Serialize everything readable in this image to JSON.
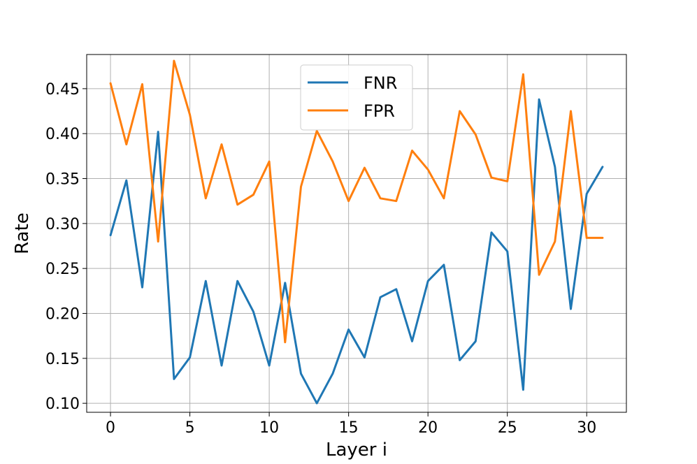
{
  "chart_data": {
    "type": "line",
    "title": "",
    "xlabel": "Layer i",
    "ylabel": "Rate",
    "xlim": [
      -1.5,
      32.5
    ],
    "ylim": [
      0.09,
      0.488
    ],
    "xticks": [
      0,
      5,
      10,
      15,
      20,
      25,
      30
    ],
    "yticks": [
      0.1,
      0.15,
      0.2,
      0.25,
      0.3,
      0.35,
      0.4,
      0.45
    ],
    "ytick_labels": [
      "0.10",
      "0.15",
      "0.20",
      "0.25",
      "0.30",
      "0.35",
      "0.40",
      "0.45"
    ],
    "grid": true,
    "legend_position": "upper-center",
    "x": [
      0,
      1,
      2,
      3,
      4,
      5,
      6,
      7,
      8,
      9,
      10,
      11,
      12,
      13,
      14,
      15,
      16,
      17,
      18,
      19,
      20,
      21,
      22,
      23,
      24,
      25,
      26,
      27,
      28,
      29,
      30,
      31
    ],
    "series": [
      {
        "name": "FNR",
        "color": "#1f77b4",
        "values": [
          0.287,
          0.348,
          0.229,
          0.402,
          0.127,
          0.151,
          0.236,
          0.142,
          0.236,
          0.202,
          0.142,
          0.234,
          0.133,
          0.1,
          0.133,
          0.182,
          0.151,
          0.218,
          0.227,
          0.169,
          0.236,
          0.254,
          0.148,
          0.169,
          0.29,
          0.269,
          0.115,
          0.438,
          0.363,
          0.205,
          0.333,
          0.363
        ]
      },
      {
        "name": "FPR",
        "color": "#ff7f0e",
        "values": [
          0.456,
          0.388,
          0.455,
          0.28,
          0.481,
          0.421,
          0.328,
          0.388,
          0.321,
          0.332,
          0.369,
          0.168,
          0.341,
          0.403,
          0.369,
          0.325,
          0.362,
          0.328,
          0.325,
          0.381,
          0.36,
          0.328,
          0.425,
          0.399,
          0.351,
          0.347,
          0.466,
          0.243,
          0.28,
          0.425,
          0.284,
          0.284
        ]
      }
    ]
  }
}
